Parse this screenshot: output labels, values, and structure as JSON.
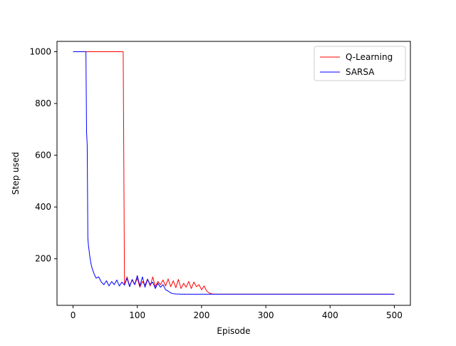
{
  "chart_data": {
    "type": "line",
    "title": "",
    "xlabel": "Episode",
    "ylabel": "Step used",
    "xlim": [
      -25,
      525
    ],
    "ylim": [
      20,
      1040
    ],
    "xticks": [
      0,
      100,
      200,
      300,
      400,
      500
    ],
    "yticks": [
      200,
      400,
      600,
      800,
      1000
    ],
    "grid": false,
    "legend_position": "top-right",
    "series": [
      {
        "name": "Q-Learning",
        "color": "#ff0000",
        "x": [
          0,
          78,
          79,
          80,
          84,
          88,
          92,
          96,
          100,
          104,
          108,
          112,
          116,
          120,
          124,
          128,
          132,
          136,
          140,
          144,
          148,
          152,
          156,
          160,
          164,
          168,
          172,
          176,
          180,
          184,
          188,
          192,
          196,
          200,
          204,
          208,
          212,
          216,
          220,
          500
        ],
        "y": [
          1000,
          1000,
          560,
          100,
          130,
          95,
          118,
          100,
          125,
          90,
          112,
          98,
          122,
          95,
          130,
          92,
          112,
          100,
          118,
          95,
          122,
          92,
          115,
          88,
          120,
          85,
          105,
          90,
          112,
          85,
          110,
          92,
          100,
          80,
          95,
          75,
          68,
          64,
          63,
          63
        ]
      },
      {
        "name": "SARSA",
        "color": "#0000ff",
        "x": [
          0,
          20,
          21,
          22,
          23,
          24,
          26,
          28,
          30,
          33,
          36,
          40,
          44,
          48,
          52,
          56,
          60,
          64,
          68,
          72,
          76,
          80,
          84,
          88,
          92,
          96,
          100,
          104,
          108,
          112,
          116,
          120,
          124,
          128,
          132,
          136,
          140,
          144,
          148,
          152,
          156,
          160,
          170,
          180,
          200,
          500
        ],
        "y": [
          1000,
          1000,
          690,
          640,
          280,
          250,
          210,
          180,
          160,
          140,
          125,
          130,
          110,
          100,
          115,
          95,
          112,
          100,
          118,
          95,
          110,
          98,
          125,
          92,
          120,
          100,
          135,
          95,
          130,
          90,
          120,
          100,
          110,
          85,
          105,
          90,
          100,
          80,
          75,
          68,
          65,
          64,
          63,
          63,
          63,
          63
        ]
      }
    ]
  }
}
